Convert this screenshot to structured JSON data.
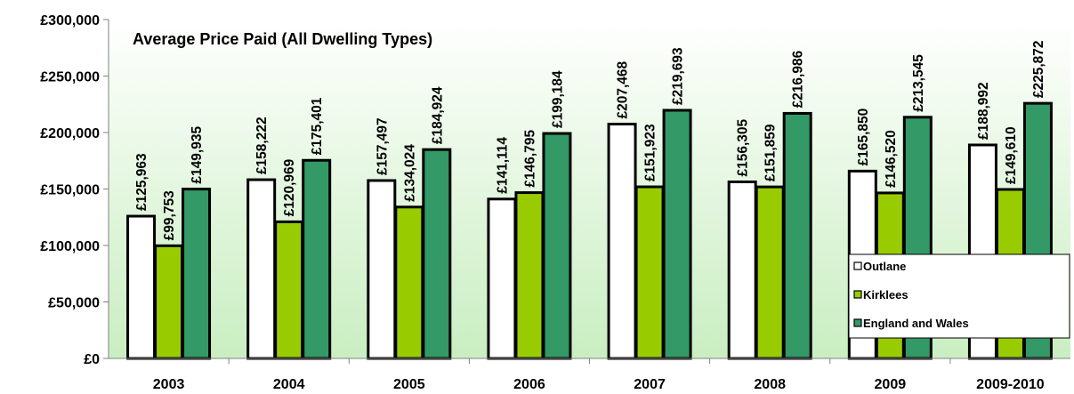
{
  "chart_data": {
    "type": "bar",
    "title": "Average Price Paid (All Dwelling Types)",
    "categories": [
      "2003",
      "2004",
      "2005",
      "2006",
      "2007",
      "2008",
      "2009",
      "2009-2010"
    ],
    "series": [
      {
        "name": "Outlane",
        "color": "#ffffff",
        "values": [
          125963,
          158222,
          157497,
          141114,
          207468,
          156305,
          165850,
          188992
        ],
        "labels": [
          "£125,963",
          "£158,222",
          "£157,497",
          "£141,114",
          "£207,468",
          "£156,305",
          "£165,850",
          "£188,992"
        ]
      },
      {
        "name": "Kirklees",
        "color": "#99cc00",
        "values": [
          99753,
          120969,
          134024,
          146795,
          151923,
          151859,
          146520,
          149610
        ],
        "labels": [
          "£99,753",
          "£120,969",
          "£134,024",
          "£146,795",
          "£151,923",
          "£151,859",
          "£146,520",
          "£149,610"
        ]
      },
      {
        "name": "England and Wales",
        "color": "#339966",
        "values": [
          149935,
          175401,
          184924,
          199184,
          219693,
          216986,
          213545,
          225872
        ],
        "labels": [
          "£149,935",
          "£175,401",
          "£184,924",
          "£199,184",
          "£219,693",
          "£216,986",
          "£213,545",
          "£225,872"
        ]
      }
    ],
    "ylim": [
      0,
      300000
    ],
    "yticks": [
      0,
      50000,
      100000,
      150000,
      200000,
      250000,
      300000
    ],
    "ytick_labels": [
      "£0",
      "£50,000",
      "£100,000",
      "£150,000",
      "£200,000",
      "£250,000",
      "£300,000"
    ],
    "legend_position": "bottom-right",
    "grid": false,
    "background": "gradient light green"
  }
}
